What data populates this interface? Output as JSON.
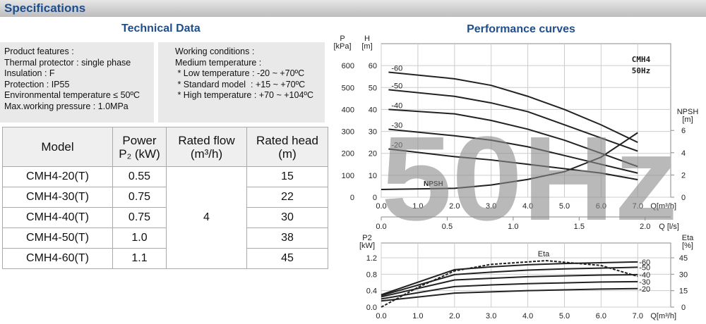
{
  "header": {
    "title": "Specifications"
  },
  "tech": {
    "title": "Technical Data",
    "features": [
      "Product features :",
      "Thermal protector : single phase",
      "Insulation : F",
      "Protection : IP55",
      "Environmental temperature ≤ 50ºC",
      "Max.working pressure : 1.0MPa"
    ],
    "conditions": [
      "Working conditions :",
      "Medium temperature :",
      " * Low temperature : -20 ~ +70ºC",
      " * Standard model  : +15 ~ +70ºC",
      " * High temperature : +70 ~ +104ºC"
    ]
  },
  "table": {
    "header": [
      [
        "Model"
      ],
      [
        "Power",
        "P₂ (kW)"
      ],
      [
        "Rated flow",
        "(m³/h)"
      ],
      [
        "Rated head",
        "(m)"
      ]
    ],
    "rows": [
      [
        "CMH4-20(T)",
        "0.55",
        "15"
      ],
      [
        "CMH4-30(T)",
        "0.75",
        "22"
      ],
      [
        "CMH4-40(T)",
        "0.75",
        "30"
      ],
      [
        "CMH4-50(T)",
        "1.0",
        "38"
      ],
      [
        "CMH4-60(T)",
        "1.1",
        "45"
      ]
    ],
    "flow": "4"
  },
  "perf": {
    "title": "Performance curves",
    "watermark": "50Hz",
    "model": "CMH4",
    "freq": "50Hz",
    "npsh_label": "NPSH",
    "eta_label": "Eta",
    "upper": {
      "xlim": [
        0,
        7.9
      ],
      "xticks": [
        {
          "value": 0,
          "label": "0.0"
        },
        {
          "value": 1,
          "label": "1.0"
        },
        {
          "value": 2,
          "label": "2.0"
        },
        {
          "value": 3,
          "label": "3.0"
        },
        {
          "value": 4,
          "label": "4.0"
        },
        {
          "value": 5,
          "label": "5.0"
        },
        {
          "value": 6,
          "label": "6.0"
        },
        {
          "value": 7,
          "label": "7.0"
        }
      ],
      "xlabel": "Q[m³/h]",
      "x2lim": [
        0,
        2.194
      ],
      "x2ticks": [
        {
          "value": 0,
          "label": "0.0"
        },
        0.5,
        {
          "value": 1,
          "label": "1.0"
        },
        1.5,
        {
          "value": 2,
          "label": "2.0"
        }
      ],
      "x2label": "Q [l/s]",
      "ylim": [
        0,
        70
      ],
      "yticks": [
        0,
        10,
        20,
        30,
        40,
        50,
        60
      ],
      "ylabel": [
        "H",
        "[m]"
      ],
      "plim": [
        0,
        700
      ],
      "pticks": [
        0,
        100,
        200,
        300,
        400,
        500,
        600
      ],
      "plabel": [
        "P",
        "[kPa]"
      ],
      "y2lim": [
        0,
        13.8
      ],
      "y2ticks": [
        0,
        2,
        4,
        6
      ],
      "y2label": [
        "NPSH",
        "[m]"
      ],
      "series": [
        {
          "name": "-60",
          "x": [
            0.2,
            2,
            3,
            4,
            5,
            6,
            7
          ],
          "values": [
            57,
            54,
            51,
            46,
            40,
            33,
            25
          ]
        },
        {
          "name": "-50",
          "x": [
            0.2,
            2,
            3,
            4,
            5,
            6,
            7
          ],
          "values": [
            49,
            46,
            43,
            39,
            33,
            27,
            21
          ]
        },
        {
          "name": "-40",
          "x": [
            0.2,
            2,
            3,
            4,
            5,
            6,
            7
          ],
          "values": [
            40,
            38,
            35,
            31,
            26,
            20,
            14
          ]
        },
        {
          "name": "-30",
          "x": [
            0.2,
            2,
            3,
            4,
            5,
            6,
            7
          ],
          "values": [
            31,
            28,
            26,
            23,
            19,
            15,
            11
          ]
        },
        {
          "name": "-20",
          "x": [
            0.2,
            2,
            3,
            4,
            5,
            6,
            7
          ],
          "values": [
            22,
            18.5,
            17,
            15,
            13,
            11,
            8
          ]
        }
      ],
      "npsh": {
        "x": [
          0,
          2,
          3,
          4,
          5,
          6,
          7
        ],
        "values": [
          0.7,
          0.8,
          1.1,
          1.6,
          2.3,
          3.6,
          5.8
        ]
      }
    },
    "lower": {
      "xlim": [
        0,
        7.9
      ],
      "xticks": [
        {
          "value": 0,
          "label": "0.0"
        },
        {
          "value": 1,
          "label": "1.0"
        },
        {
          "value": 2,
          "label": "2.0"
        },
        {
          "value": 3,
          "label": "3.0"
        },
        {
          "value": 4,
          "label": "4.0"
        },
        {
          "value": 5,
          "label": "5.0"
        },
        {
          "value": 6,
          "label": "6.0"
        },
        {
          "value": 7,
          "label": "7.0"
        }
      ],
      "xlabel": "Q[m³/h]",
      "ylim": [
        0,
        1.56
      ],
      "yticks": [
        {
          "value": 0,
          "label": "0.0"
        },
        0.4,
        0.8,
        1.2
      ],
      "ylabel": [
        "P2",
        "[kW]"
      ],
      "y2lim": [
        0,
        58.5
      ],
      "y2ticks": [
        0,
        15,
        30,
        45
      ],
      "y2label": [
        "Eta",
        "[%]"
      ],
      "series": [
        {
          "name": "-60",
          "x": [
            0,
            2,
            3,
            4,
            5,
            6,
            7
          ],
          "values": [
            0.3,
            0.91,
            0.98,
            1.03,
            1.06,
            1.08,
            1.1
          ]
        },
        {
          "name": "-50",
          "x": [
            0,
            2,
            3,
            4,
            5,
            6,
            7
          ],
          "values": [
            0.28,
            0.79,
            0.85,
            0.9,
            0.93,
            0.95,
            0.97
          ]
        },
        {
          "name": "-40",
          "x": [
            0,
            2,
            3,
            4,
            5,
            6,
            7
          ],
          "values": [
            0.25,
            0.66,
            0.7,
            0.74,
            0.76,
            0.78,
            0.79
          ]
        },
        {
          "name": "-30",
          "x": [
            0,
            2,
            3,
            4,
            5,
            6,
            7
          ],
          "values": [
            0.2,
            0.5,
            0.54,
            0.57,
            0.59,
            0.61,
            0.62
          ]
        },
        {
          "name": "-20",
          "x": [
            0,
            2,
            3,
            4,
            5,
            6,
            7
          ],
          "values": [
            0.15,
            0.34,
            0.37,
            0.4,
            0.42,
            0.44,
            0.45
          ]
        }
      ],
      "eta": {
        "x": [
          0,
          1,
          2,
          3,
          4.5,
          6,
          7
        ],
        "values": [
          0,
          18,
          33,
          39,
          42.4,
          38,
          28
        ]
      }
    }
  }
}
